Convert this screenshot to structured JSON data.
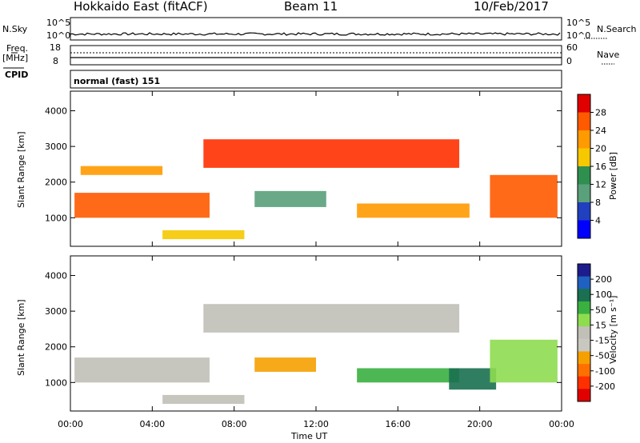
{
  "header": {
    "radar_title": "Hokkaido East (fitACF)",
    "beam": "Beam 11",
    "date": "10/Feb/2017"
  },
  "noise_panel": {
    "left_label": "N.Sky",
    "left_ticks": [
      "10^5",
      "10^0"
    ],
    "right_ticks": [
      "10^5",
      "10^0"
    ],
    "right_label": "N.Search"
  },
  "freq_panel": {
    "left_label_top": "Freq.",
    "left_label_unit": "[MHz]",
    "left_ticks": [
      "18",
      "8"
    ],
    "right_ticks": [
      "60",
      "0"
    ],
    "right_label": "Nave"
  },
  "cpid_panel": {
    "label": "CPID",
    "text": "normal (fast) 151"
  },
  "chart_data": [
    {
      "type": "heatmap",
      "name": "power",
      "ylabel": "Slant Range [km]",
      "y_ticks": [
        "4000",
        "3000",
        "2000",
        "1000"
      ],
      "ylim": [
        200,
        4550
      ],
      "colorbar_label": "Power [dB]",
      "colorbar_ticks": [
        "28",
        "24",
        "20",
        "16",
        "12",
        "8",
        "4"
      ],
      "colorbar_colors": [
        "#e00000",
        "#ff5a00",
        "#ff9a00",
        "#f5c800",
        "#2f8f4f",
        "#5aa07a",
        "#2040c0",
        "#0000ff"
      ],
      "echo_bands": [
        {
          "t0": 0.2,
          "t1": 6.8,
          "r0": 1000,
          "r1": 1700,
          "color": "#ff5a00"
        },
        {
          "t0": 0.5,
          "t1": 4.5,
          "r0": 2200,
          "r1": 2450,
          "color": "#ff9a00"
        },
        {
          "t0": 6.5,
          "t1": 19.0,
          "r0": 2400,
          "r1": 3200,
          "color": "#ff3000"
        },
        {
          "t0": 9.0,
          "t1": 12.5,
          "r0": 1300,
          "r1": 1750,
          "color": "#5aa07a"
        },
        {
          "t0": 14.0,
          "t1": 19.5,
          "r0": 1000,
          "r1": 1400,
          "color": "#ff9a00"
        },
        {
          "t0": 20.5,
          "t1": 23.8,
          "r0": 1000,
          "r1": 2200,
          "color": "#ff5a00"
        },
        {
          "t0": 4.5,
          "t1": 8.5,
          "r0": 400,
          "r1": 650,
          "color": "#f5c800"
        }
      ]
    },
    {
      "type": "heatmap",
      "name": "velocity",
      "ylabel": "Slant Range [km]",
      "xlabel": "Time UT",
      "x_ticks": [
        "00:00",
        "04:00",
        "08:00",
        "12:00",
        "16:00",
        "20:00",
        "00:00"
      ],
      "xlim": [
        0,
        24
      ],
      "y_ticks": [
        "4000",
        "3000",
        "2000",
        "1000"
      ],
      "ylim": [
        200,
        4550
      ],
      "colorbar_label": "Velocity [m s⁻¹]",
      "colorbar_ticks": [
        "200",
        "100",
        "50",
        "15",
        "-15",
        "-50",
        "-100",
        "-200"
      ],
      "colorbar_colors": [
        "#1c1c8c",
        "#2060c0",
        "#1a7050",
        "#3ab040",
        "#8edc50",
        "#c0c0b8",
        "#c8c8c0",
        "#f5a000",
        "#ff7000",
        "#ff3000",
        "#e00000"
      ],
      "echo_bands": [
        {
          "t0": 0.2,
          "t1": 6.8,
          "r0": 1000,
          "r1": 1700,
          "color": "#c0c0b8"
        },
        {
          "t0": 6.5,
          "t1": 19.0,
          "r0": 2400,
          "r1": 3200,
          "color": "#c0c0b8"
        },
        {
          "t0": 9.0,
          "t1": 12.0,
          "r0": 1300,
          "r1": 1700,
          "color": "#f5a000"
        },
        {
          "t0": 14.0,
          "t1": 19.0,
          "r0": 1000,
          "r1": 1400,
          "color": "#3ab040"
        },
        {
          "t0": 18.5,
          "t1": 20.8,
          "r0": 800,
          "r1": 1400,
          "color": "#1a7050"
        },
        {
          "t0": 20.5,
          "t1": 23.8,
          "r0": 1000,
          "r1": 2200,
          "color": "#8edc50"
        },
        {
          "t0": 4.5,
          "t1": 8.5,
          "r0": 400,
          "r1": 650,
          "color": "#c0c0b8"
        }
      ]
    }
  ]
}
